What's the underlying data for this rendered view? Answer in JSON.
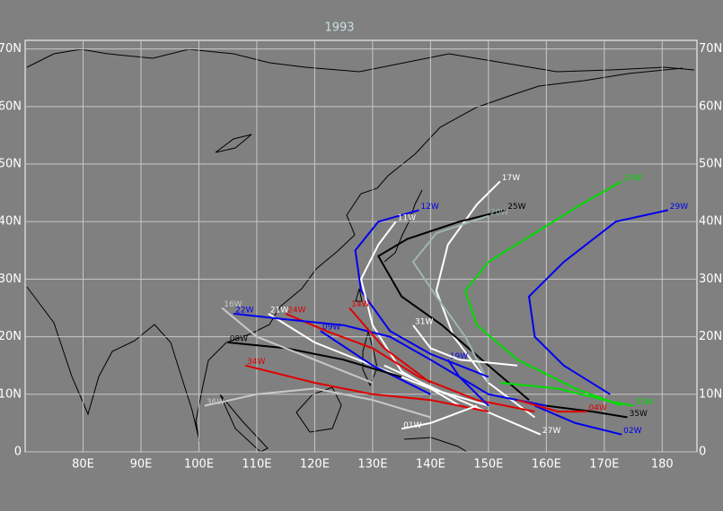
{
  "map": {
    "title": "1993",
    "xlim": [
      70,
      186
    ],
    "ylim": [
      0,
      71.5
    ],
    "xticks": [
      {
        "value": 80,
        "label": "80E"
      },
      {
        "value": 90,
        "label": "90E"
      },
      {
        "value": 100,
        "label": "100E"
      },
      {
        "value": 110,
        "label": "110E"
      },
      {
        "value": 120,
        "label": "120E"
      },
      {
        "value": 130,
        "label": "130E"
      },
      {
        "value": 140,
        "label": "140E"
      },
      {
        "value": 150,
        "label": "150E"
      },
      {
        "value": 160,
        "label": "160E"
      },
      {
        "value": 170,
        "label": "170E"
      },
      180
    ],
    "yticks": [
      0,
      {
        "value": 10,
        "label": "10N"
      },
      {
        "value": 20,
        "label": "20N"
      },
      {
        "value": 30,
        "label": "30N"
      },
      {
        "value": 40,
        "label": "40N"
      },
      {
        "value": 50,
        "label": "50N"
      },
      {
        "value": 60,
        "label": "60N"
      },
      {
        "value": 70,
        "label": "70N"
      }
    ],
    "grid": true,
    "tracks": [
      {
        "name": "17W",
        "color": "#ffffff",
        "lon": [
          158,
          150,
          144,
          141,
          143,
          148,
          152
        ],
        "lat": [
          6,
          12,
          20,
          28,
          36,
          43,
          47
        ]
      },
      {
        "name": "23W",
        "color": "#00dd00",
        "lon": [
          173,
          165,
          155,
          148,
          146,
          150,
          158,
          166,
          173
        ],
        "lat": [
          8,
          11,
          16,
          22,
          28,
          33,
          38,
          43,
          47
        ]
      },
      {
        "name": "29W",
        "color": "#0000ee",
        "lon": [
          171,
          163,
          158,
          157,
          163,
          172,
          181
        ],
        "lat": [
          10,
          15,
          20,
          27,
          33,
          40,
          42
        ]
      },
      {
        "name": "25W",
        "color": "#000000",
        "lon": [
          157,
          150,
          142,
          135,
          131,
          136,
          145,
          153
        ],
        "lat": [
          9,
          15,
          22,
          27,
          34,
          37,
          40,
          42
        ]
      },
      {
        "name": "20W",
        "color": "#a0b4b4",
        "lon": [
          150,
          146,
          141,
          137,
          141,
          147,
          150
        ],
        "lat": [
          12,
          20,
          27,
          33,
          38,
          40,
          41
        ]
      },
      {
        "name": "02W",
        "color": "#0000ee",
        "lon": [
          158,
          165,
          173
        ],
        "lat": [
          8,
          5,
          3
        ]
      },
      {
        "name": "35W",
        "color": "#000000",
        "lon": [
          160,
          168,
          174
        ],
        "lat": [
          8,
          7,
          6
        ]
      },
      {
        "name": "33W",
        "color": "#00dd00",
        "lon": [
          152,
          162,
          170,
          175
        ],
        "lat": [
          12,
          11,
          9,
          8
        ]
      },
      {
        "name": "27W",
        "color": "#ffffff",
        "lon": [
          132,
          145,
          152,
          159
        ],
        "lat": [
          15,
          9,
          6,
          3
        ]
      },
      {
        "name": "12W",
        "color": "#0000ee",
        "lon": [
          150,
          140,
          133,
          128,
          127,
          131,
          138
        ],
        "lat": [
          13,
          17,
          21,
          28,
          35,
          40,
          42
        ]
      },
      {
        "name": "11W",
        "color": "#ffffff",
        "lon": [
          145,
          135,
          130,
          128,
          131,
          134
        ],
        "lat": [
          8,
          14,
          22,
          30,
          36,
          40
        ]
      },
      {
        "name": "24W",
        "color": "#e00000",
        "lon": [
          158,
          148,
          138,
          130,
          122,
          115
        ],
        "lat": [
          7,
          9,
          13,
          18,
          21,
          24
        ]
      },
      {
        "name": "21W",
        "color": "#ffffff",
        "lon": [
          150,
          140,
          130,
          120,
          112
        ],
        "lat": [
          8,
          11,
          15,
          19,
          24
        ]
      },
      {
        "name": "22W",
        "color": "#0000ee",
        "lon": [
          160,
          150,
          145,
          140,
          133,
          125,
          115,
          106
        ],
        "lat": [
          8,
          10,
          13,
          16,
          20,
          22,
          23,
          24
        ]
      },
      {
        "name": "19W",
        "color": "#0000ee",
        "lon": [
          150,
          145,
          143
        ],
        "lat": [
          8,
          13,
          16
        ]
      },
      {
        "name": "34W",
        "color": "#e00000",
        "lon": [
          150,
          140,
          130,
          120,
          108
        ],
        "lat": [
          7,
          9,
          10,
          12,
          15
        ]
      },
      {
        "name": "36W",
        "color": "#c8c8c8",
        "lon": [
          140,
          130,
          120,
          110,
          101
        ],
        "lat": [
          6,
          9,
          11,
          10,
          8
        ]
      },
      {
        "name": "31W",
        "color": "#ffffff",
        "lon": [
          155,
          145,
          140,
          137
        ],
        "lat": [
          15,
          16,
          18,
          22
        ]
      },
      {
        "name": "09W",
        "color": "#0000ee",
        "lon": [
          140,
          130,
          121
        ],
        "lat": [
          10,
          15,
          21
        ]
      },
      {
        "name": "08W",
        "color": "#000000",
        "lon": [
          135,
          125,
          115,
          105
        ],
        "lat": [
          13,
          16,
          18,
          19
        ]
      },
      {
        "name": "04W",
        "color": "#e00000",
        "lon": [
          155,
          162,
          167
        ],
        "lat": [
          9,
          7,
          7
        ]
      },
      {
        "name": "01W",
        "color": "#ffffff",
        "lon": [
          148,
          140,
          135
        ],
        "lat": [
          8,
          5,
          4
        ]
      },
      {
        "name": "14W",
        "color": "#e00000",
        "lon": [
          140,
          132,
          126
        ],
        "lat": [
          12,
          18,
          25
        ]
      },
      {
        "name": "16W",
        "color": "#c8c8c8",
        "lon": [
          130,
          120,
          110,
          104
        ],
        "lat": [
          12,
          16,
          20,
          25
        ]
      }
    ]
  }
}
